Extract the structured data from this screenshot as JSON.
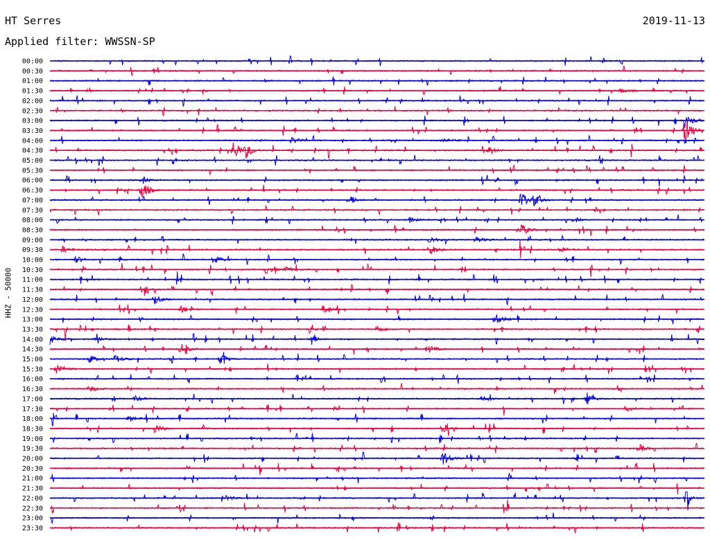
{
  "header": {
    "station": "HT Serres",
    "date": "2019-11-13",
    "filter": "Applied filter: WWSSN-SP"
  },
  "chart_data": {
    "type": "line",
    "title": "HT Serres",
    "subtitle": "Applied filter: WWSSN-SP",
    "ylabel": "HHZ - 50000",
    "row_labels": [
      "00:00",
      "00:30",
      "01:00",
      "01:30",
      "02:00",
      "02:30",
      "03:00",
      "03:30",
      "04:00",
      "04:30",
      "05:00",
      "05:30",
      "06:00",
      "06:30",
      "07:00",
      "07:30",
      "08:00",
      "08:30",
      "09:00",
      "09:30",
      "10:00",
      "10:30",
      "11:00",
      "11:30",
      "12:00",
      "12:30",
      "13:00",
      "13:30",
      "14:00",
      "14:30",
      "15:00",
      "15:30",
      "16:00",
      "16:30",
      "17:00",
      "17:30",
      "18:00",
      "18:30",
      "19:00",
      "19:30",
      "20:00",
      "20:30",
      "21:00",
      "21:30",
      "22:00",
      "22:30",
      "23:00",
      "23:30"
    ],
    "colors": [
      "#0000dd",
      "#e8003c"
    ],
    "grid": false,
    "events": [
      {
        "row": 3,
        "x": 0.87,
        "amp": 4
      },
      {
        "row": 6,
        "x": 0.97,
        "amp": 10
      },
      {
        "row": 7,
        "x": 0.97,
        "amp": 22
      },
      {
        "row": 8,
        "x": 0.37,
        "amp": 5
      },
      {
        "row": 8,
        "x": 0.6,
        "amp": 4
      },
      {
        "row": 9,
        "x": 0.28,
        "amp": 14
      },
      {
        "row": 9,
        "x": 0.3,
        "amp": 10
      },
      {
        "row": 9,
        "x": 0.67,
        "amp": 5
      },
      {
        "row": 12,
        "x": 0.14,
        "amp": 6
      },
      {
        "row": 13,
        "x": 0.14,
        "amp": 14
      },
      {
        "row": 14,
        "x": 0.46,
        "amp": 5
      },
      {
        "row": 14,
        "x": 0.72,
        "amp": 12
      },
      {
        "row": 14,
        "x": 0.74,
        "amp": 7
      },
      {
        "row": 16,
        "x": 0.55,
        "amp": 4
      },
      {
        "row": 16,
        "x": 0.8,
        "amp": 4
      },
      {
        "row": 17,
        "x": 0.72,
        "amp": 9
      },
      {
        "row": 18,
        "x": 0.58,
        "amp": 5
      },
      {
        "row": 18,
        "x": 0.65,
        "amp": 6
      },
      {
        "row": 19,
        "x": 0.02,
        "amp": 5
      },
      {
        "row": 19,
        "x": 0.58,
        "amp": 8
      },
      {
        "row": 19,
        "x": 0.78,
        "amp": 5
      },
      {
        "row": 20,
        "x": 0.04,
        "amp": 5
      },
      {
        "row": 20,
        "x": 0.25,
        "amp": 6
      },
      {
        "row": 21,
        "x": 0.33,
        "amp": 6
      },
      {
        "row": 21,
        "x": 0.36,
        "amp": 4
      },
      {
        "row": 24,
        "x": 0.16,
        "amp": 7
      },
      {
        "row": 25,
        "x": 0.2,
        "amp": 6
      },
      {
        "row": 25,
        "x": 0.42,
        "amp": 5
      },
      {
        "row": 26,
        "x": 0.68,
        "amp": 9
      },
      {
        "row": 27,
        "x": 0.5,
        "amp": 6
      },
      {
        "row": 28,
        "x": 0.0,
        "amp": 7
      },
      {
        "row": 28,
        "x": 0.07,
        "amp": 4
      },
      {
        "row": 28,
        "x": 0.4,
        "amp": 5
      },
      {
        "row": 29,
        "x": 0.2,
        "amp": 9
      },
      {
        "row": 29,
        "x": 0.58,
        "amp": 5
      },
      {
        "row": 30,
        "x": 0.06,
        "amp": 6
      },
      {
        "row": 30,
        "x": 0.1,
        "amp": 6
      },
      {
        "row": 30,
        "x": 0.26,
        "amp": 6
      },
      {
        "row": 31,
        "x": 0.01,
        "amp": 9
      },
      {
        "row": 33,
        "x": 0.06,
        "amp": 5
      },
      {
        "row": 34,
        "x": 0.13,
        "amp": 4
      },
      {
        "row": 34,
        "x": 0.66,
        "amp": 5
      },
      {
        "row": 34,
        "x": 0.82,
        "amp": 6
      },
      {
        "row": 35,
        "x": 0.88,
        "amp": 4
      },
      {
        "row": 36,
        "x": 0.12,
        "amp": 4
      },
      {
        "row": 37,
        "x": 0.16,
        "amp": 7
      },
      {
        "row": 37,
        "x": 0.6,
        "amp": 7
      },
      {
        "row": 39,
        "x": 0.9,
        "amp": 6
      },
      {
        "row": 40,
        "x": 0.6,
        "amp": 11
      },
      {
        "row": 44,
        "x": 0.27,
        "amp": 4
      },
      {
        "row": 44,
        "x": 0.97,
        "amp": 7
      }
    ]
  }
}
